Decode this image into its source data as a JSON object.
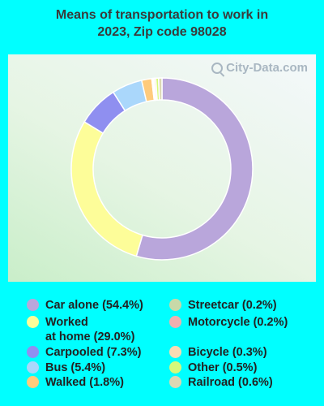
{
  "chart_data": {
    "type": "pie",
    "title_lines": [
      "Means of transportation to work in",
      "2023, Zip code 98028"
    ],
    "watermark": "City-Data.com",
    "slices": [
      {
        "label": "Car alone (54.4%)",
        "value": 54.4,
        "color": "#b9a6db"
      },
      {
        "label": "Worked\nat home (29.0%)",
        "value": 29.0,
        "color": "#fdfd99"
      },
      {
        "label": "Carpooled (7.3%)",
        "value": 7.3,
        "color": "#8f8ff0"
      },
      {
        "label": "Bus (5.4%)",
        "value": 5.4,
        "color": "#aad7fb"
      },
      {
        "label": "Walked (1.8%)",
        "value": 1.8,
        "color": "#ffcb7c"
      },
      {
        "label": "Streetcar (0.2%)",
        "value": 0.2,
        "color": "#c8d9a8"
      },
      {
        "label": "Motorcycle (0.2%)",
        "value": 0.2,
        "color": "#f0b0b0"
      },
      {
        "label": "Bicycle (0.3%)",
        "value": 0.3,
        "color": "#f9dcb4"
      },
      {
        "label": "Other (0.5%)",
        "value": 0.5,
        "color": "#d6f97a"
      },
      {
        "label": "Railroad (0.6%)",
        "value": 0.6,
        "color": "#dcd8b4"
      }
    ]
  }
}
